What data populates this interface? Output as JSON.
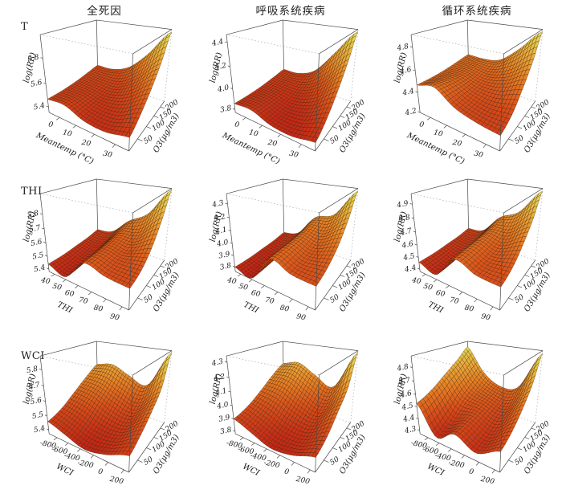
{
  "figure": {
    "background": "#ffffff"
  },
  "columns": [
    {
      "label": "全死因"
    },
    {
      "label": "呼吸系统疾病"
    },
    {
      "label": "循环系统疾病"
    }
  ],
  "rows": [
    {
      "label": "T"
    },
    {
      "label": "THI"
    },
    {
      "label": "WCI"
    }
  ],
  "style": {
    "box_line": "#4a4a4a",
    "hidden_line": "#9a9a9a",
    "mesh_line": "#3a1c06",
    "text_color": "#1a1a1a",
    "surface_stops": [
      [
        0,
        "#bf2015"
      ],
      [
        0.3,
        "#d9531c"
      ],
      [
        0.5,
        "#e57f24"
      ],
      [
        0.7,
        "#e8a93a"
      ],
      [
        0.85,
        "#e2c84a"
      ],
      [
        1,
        "#eae65e"
      ]
    ]
  },
  "chart_data": [
    {
      "type": "surface",
      "row": "T",
      "col": "全死因",
      "xlabel": "Meantemp (°C)",
      "ylabel": "O3(μg/m3)",
      "zlabel": "log(RR)",
      "x_range": [
        -7,
        36
      ],
      "x_ticks": [
        "0",
        "10",
        "20",
        "30"
      ],
      "y_range": [
        8,
        235
      ],
      "y_ticks": [
        "50",
        "100",
        "150",
        "200"
      ],
      "z_range": [
        5.35,
        5.97
      ],
      "z_ticks": [
        "5.4",
        "5.6",
        "5.8"
      ],
      "z_grid": [
        [
          5.47,
          5.48,
          5.42,
          5.41,
          5.45
        ],
        [
          5.47,
          5.47,
          5.43,
          5.44,
          5.53
        ],
        [
          5.48,
          5.47,
          5.45,
          5.51,
          5.64
        ],
        [
          5.5,
          5.49,
          5.5,
          5.61,
          5.78
        ],
        [
          5.52,
          5.52,
          5.58,
          5.74,
          5.95
        ]
      ]
    },
    {
      "type": "surface",
      "row": "T",
      "col": "呼吸系统疾病",
      "xlabel": "Meantemp (°C)",
      "ylabel": "O3(μg/m3)",
      "zlabel": "log(RR)",
      "x_range": [
        -7,
        36
      ],
      "x_ticks": [
        "0",
        "10",
        "20",
        "30"
      ],
      "y_range": [
        8,
        235
      ],
      "y_ticks": [
        "50",
        "100",
        "150",
        "200"
      ],
      "z_range": [
        3.77,
        4.46
      ],
      "z_ticks": [
        "3.8",
        "4.0",
        "4.2",
        "4.4"
      ],
      "z_grid": [
        [
          3.86,
          3.87,
          3.81,
          3.8,
          3.84
        ],
        [
          3.86,
          3.86,
          3.81,
          3.83,
          3.93
        ],
        [
          3.87,
          3.86,
          3.84,
          3.91,
          4.07
        ],
        [
          3.89,
          3.88,
          3.9,
          4.03,
          4.24
        ],
        [
          3.91,
          3.91,
          3.99,
          4.21,
          4.44
        ]
      ]
    },
    {
      "type": "surface",
      "row": "T",
      "col": "循环系统疾病",
      "xlabel": "Meantemp (°C)",
      "ylabel": "O3(μg/m3)",
      "zlabel": "log(RR)",
      "x_range": [
        -7,
        36
      ],
      "x_ticks": [
        "0",
        "10",
        "20",
        "30"
      ],
      "y_range": [
        8,
        235
      ],
      "y_ticks": [
        "50",
        "100",
        "150",
        "200"
      ],
      "z_range": [
        4.2,
        4.9
      ],
      "z_ticks": [
        "4.2",
        "4.4",
        "4.6",
        "4.8"
      ],
      "z_grid": [
        [
          4.47,
          4.51,
          4.4,
          4.35,
          4.33
        ],
        [
          4.47,
          4.49,
          4.41,
          4.37,
          4.39
        ],
        [
          4.48,
          4.48,
          4.43,
          4.44,
          4.52
        ],
        [
          4.5,
          4.49,
          4.47,
          4.54,
          4.68
        ],
        [
          4.52,
          4.51,
          4.54,
          4.69,
          4.88
        ]
      ]
    },
    {
      "type": "surface",
      "row": "THI",
      "col": "全死因",
      "xlabel": "THI",
      "ylabel": "O3(μg/m3)",
      "zlabel": "log(RR)",
      "x_range": [
        35,
        94
      ],
      "x_ticks": [
        "40",
        "50",
        "60",
        "70",
        "80",
        "90"
      ],
      "y_range": [
        8,
        235
      ],
      "y_ticks": [
        "50",
        "100",
        "150",
        "200"
      ],
      "z_range": [
        5.38,
        5.93
      ],
      "z_ticks": [
        "5.4",
        "5.5",
        "5.6",
        "5.7",
        "5.8"
      ],
      "z_grid": [
        [
          5.44,
          5.4,
          5.56,
          5.53,
          5.52
        ],
        [
          5.44,
          5.41,
          5.56,
          5.54,
          5.55
        ],
        [
          5.45,
          5.43,
          5.57,
          5.56,
          5.63
        ],
        [
          5.46,
          5.46,
          5.59,
          5.62,
          5.76
        ],
        [
          5.48,
          5.5,
          5.63,
          5.72,
          5.92
        ]
      ]
    },
    {
      "type": "surface",
      "row": "THI",
      "col": "呼吸系统疾病",
      "xlabel": "THI",
      "ylabel": "O3(μg/m3)",
      "zlabel": "log(RR)",
      "x_range": [
        35,
        94
      ],
      "x_ticks": [
        "40",
        "50",
        "60",
        "70",
        "80",
        "90"
      ],
      "y_range": [
        8,
        235
      ],
      "y_ticks": [
        "50",
        "100",
        "150",
        "200"
      ],
      "z_range": [
        3.76,
        4.37
      ],
      "z_ticks": [
        "3.8",
        "3.9",
        "4.0",
        "4.1",
        "4.2",
        "4.3"
      ],
      "z_grid": [
        [
          3.8,
          3.77,
          3.99,
          3.94,
          3.93
        ],
        [
          3.8,
          3.78,
          4.0,
          3.95,
          3.97
        ],
        [
          3.81,
          3.8,
          4.01,
          3.98,
          4.05
        ],
        [
          3.82,
          3.84,
          4.03,
          4.04,
          4.18
        ],
        [
          3.84,
          3.88,
          4.07,
          4.13,
          4.35
        ]
      ]
    },
    {
      "type": "surface",
      "row": "THI",
      "col": "循环系统疾病",
      "xlabel": "THI",
      "ylabel": "O3(μg/m3)",
      "zlabel": "log(RR)",
      "x_range": [
        35,
        94
      ],
      "x_ticks": [
        "40",
        "50",
        "60",
        "70",
        "80",
        "90"
      ],
      "y_range": [
        8,
        235
      ],
      "y_ticks": [
        "50",
        "100",
        "150",
        "200"
      ],
      "z_range": [
        4.38,
        4.97
      ],
      "z_ticks": [
        "4.4",
        "4.5",
        "4.6",
        "4.7",
        "4.8",
        "4.9"
      ],
      "z_grid": [
        [
          4.46,
          4.42,
          4.6,
          4.55,
          4.54
        ],
        [
          4.46,
          4.43,
          4.61,
          4.56,
          4.58
        ],
        [
          4.47,
          4.45,
          4.62,
          4.59,
          4.67
        ],
        [
          4.48,
          4.48,
          4.64,
          4.66,
          4.79
        ],
        [
          4.5,
          4.52,
          4.68,
          4.76,
          4.95
        ]
      ]
    },
    {
      "type": "surface",
      "row": "WCI",
      "col": "全死因",
      "xlabel": "WCI",
      "ylabel": "O3(μg/m3)",
      "zlabel": "log(RR)",
      "x_range": [
        -950,
        260
      ],
      "x_ticks": [
        "-800",
        "-600",
        "-400",
        "-200",
        "0",
        "200"
      ],
      "y_range": [
        8,
        235
      ],
      "y_ticks": [
        "50",
        "100",
        "150",
        "200"
      ],
      "z_range": [
        5.37,
        5.88
      ],
      "z_ticks": [
        "5.4",
        "5.5",
        "5.6",
        "5.7",
        "5.8"
      ],
      "z_grid": [
        [
          5.46,
          5.42,
          5.38,
          5.41,
          5.47
        ],
        [
          5.5,
          5.47,
          5.42,
          5.43,
          5.52
        ],
        [
          5.57,
          5.55,
          5.49,
          5.47,
          5.59
        ],
        [
          5.64,
          5.63,
          5.57,
          5.53,
          5.68
        ],
        [
          5.7,
          5.72,
          5.66,
          5.62,
          5.87
        ]
      ]
    },
    {
      "type": "surface",
      "row": "WCI",
      "col": "呼吸系统疾病",
      "xlabel": "WCI",
      "ylabel": "O3(μg/m3)",
      "zlabel": "log(RR)",
      "x_range": [
        -950,
        260
      ],
      "x_ticks": [
        "-800",
        "-600",
        "-400",
        "-200",
        "0",
        "200"
      ],
      "y_range": [
        8,
        235
      ],
      "y_ticks": [
        "50",
        "100",
        "150",
        "200"
      ],
      "z_range": [
        3.78,
        4.34
      ],
      "z_ticks": [
        "3.8",
        "3.9",
        "4.0",
        "4.1",
        "4.2",
        "4.3"
      ],
      "z_grid": [
        [
          3.9,
          3.85,
          3.8,
          3.82,
          3.88
        ],
        [
          3.94,
          3.9,
          3.84,
          3.84,
          3.93
        ],
        [
          4.01,
          3.99,
          3.92,
          3.89,
          4.02
        ],
        [
          4.09,
          4.09,
          4.01,
          3.95,
          4.12
        ],
        [
          4.15,
          4.18,
          4.1,
          4.04,
          4.33
        ]
      ]
    },
    {
      "type": "surface",
      "row": "WCI",
      "col": "循环系统疾病",
      "xlabel": "WCI",
      "ylabel": "O3(μg/m3)",
      "zlabel": "log(RR)",
      "x_range": [
        -950,
        260
      ],
      "x_ticks": [
        "-800",
        "-600",
        "-400",
        "-200",
        "0",
        "200"
      ],
      "y_range": [
        8,
        235
      ],
      "y_ticks": [
        "50",
        "100",
        "150",
        "200"
      ],
      "z_range": [
        4.27,
        4.88
      ],
      "z_ticks": [
        "4.3",
        "4.4",
        "4.5",
        "4.6",
        "4.7",
        "4.8"
      ],
      "z_grid": [
        [
          4.53,
          4.31,
          4.4,
          4.33,
          4.42
        ],
        [
          4.58,
          4.38,
          4.42,
          4.35,
          4.47
        ],
        [
          4.66,
          4.48,
          4.45,
          4.4,
          4.56
        ],
        [
          4.74,
          4.55,
          4.48,
          4.46,
          4.68
        ],
        [
          4.83,
          4.62,
          4.52,
          4.55,
          4.86
        ]
      ]
    }
  ]
}
